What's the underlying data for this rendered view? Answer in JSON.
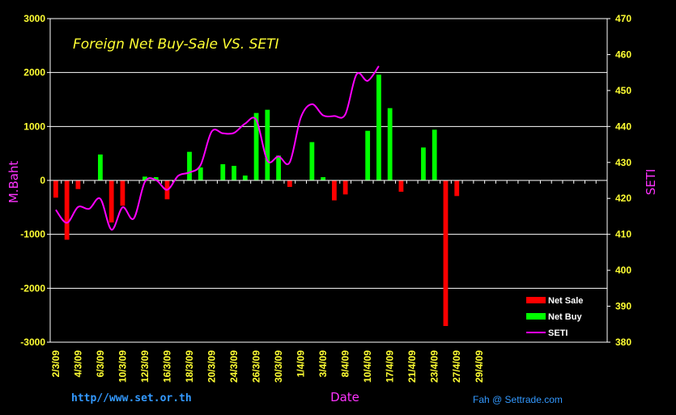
{
  "chart_data": {
    "type": "bar",
    "title": "Foreign Net Buy-Sale  VS.  SETI",
    "xlabel": "Date",
    "ylabel": "M.Baht",
    "y2label": "SETI",
    "ylim": [
      -3000,
      3000
    ],
    "y2lim": [
      380,
      470
    ],
    "yticks": [
      "3000",
      "2000",
      "1000",
      "0",
      "-1000",
      "-2000",
      "-3000"
    ],
    "y2ticks": [
      "470",
      "460",
      "450",
      "440",
      "430",
      "420",
      "410",
      "400",
      "390",
      "380"
    ],
    "x_tick_labels": [
      "2/3/09",
      "4/3/09",
      "6/3/09",
      "10/3/09",
      "12/3/09",
      "16/3/09",
      "18/3/09",
      "20/3/09",
      "24/3/09",
      "26/3/09",
      "30/3/09",
      "1/4/09",
      "3/4/09",
      "8/4/09",
      "10/4/09",
      "17/4/09",
      "21/4/09",
      "23/4/09",
      "27/4/09",
      "29/4/09"
    ],
    "grid": true,
    "legend_position": "bottom-right",
    "bars": [
      -320,
      -1100,
      -160,
      0,
      480,
      -780,
      -470,
      0,
      70,
      60,
      -350,
      0,
      530,
      240,
      0,
      300,
      270,
      90,
      1250,
      1310,
      460,
      -120,
      0,
      710,
      60,
      -370,
      -260,
      0,
      920,
      1960,
      1340,
      -210,
      0,
      610,
      940,
      -2700,
      -290,
      0,
      0,
      0,
      0,
      0,
      0,
      0,
      0,
      0,
      0,
      0,
      0,
      0
    ],
    "seti": [
      416.8,
      413.2,
      417.6,
      417.1,
      419.9,
      411.3,
      417.5,
      414.4,
      424.6,
      425.1,
      422.4,
      426.3,
      427.2,
      429.3,
      438.6,
      438.1,
      438.2,
      440.8,
      441.8,
      430.5,
      431.7,
      430.0,
      442.5,
      446.2,
      443.1,
      442.9,
      443.4,
      454.5,
      452.7,
      456.8
    ],
    "series": [
      {
        "name": "Net Sale",
        "color": "#ff0000"
      },
      {
        "name": "Net Buy",
        "color": "#00ff00"
      },
      {
        "name": "SETI",
        "color": "#ff00ff"
      }
    ]
  },
  "credits": {
    "left": "http//www.set.or.th",
    "right": "Fah @ Settrade.com"
  }
}
